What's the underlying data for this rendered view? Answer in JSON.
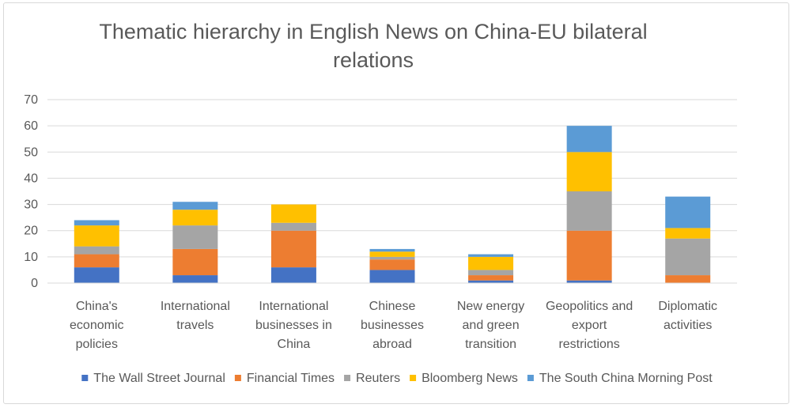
{
  "chart_data": {
    "type": "bar",
    "stacked": true,
    "title": "Thematic hierarchy in English News on China-EU bilateral relations",
    "title_lines": [
      "Thematic hierarchy in English News on China-EU bilateral",
      "relations"
    ],
    "categories": [
      "China's economic policies",
      "International travels",
      "International businesses in China",
      "Chinese businesses abroad",
      "New energy and green transition",
      "Geopolitics and export restrictions",
      "Diplomatic activities"
    ],
    "category_lines": [
      [
        "China's",
        "economic",
        "policies"
      ],
      [
        "International",
        "travels"
      ],
      [
        "International",
        "businesses in",
        "China"
      ],
      [
        "Chinese",
        "businesses",
        "abroad"
      ],
      [
        "New energy",
        "and green",
        "transition"
      ],
      [
        "Geopolitics and",
        "export",
        "restrictions"
      ],
      [
        "Diplomatic",
        "activities"
      ]
    ],
    "series": [
      {
        "name": "The Wall Street Journal",
        "color": "#4472c4",
        "values": [
          6,
          3,
          6,
          5,
          1,
          1,
          0
        ]
      },
      {
        "name": "Financial Times",
        "color": "#ed7d31",
        "values": [
          5,
          10,
          14,
          4,
          2,
          19,
          3
        ]
      },
      {
        "name": "Reuters",
        "color": "#a5a5a5",
        "values": [
          3,
          9,
          3,
          1,
          2,
          15,
          14
        ]
      },
      {
        "name": "Bloomberg News",
        "color": "#ffc000",
        "values": [
          8,
          6,
          7,
          2,
          5,
          15,
          4
        ]
      },
      {
        "name": "The South China Morning Post",
        "color": "#5b9bd5",
        "values": [
          2,
          3,
          0,
          1,
          1,
          10,
          12
        ]
      }
    ],
    "ylim": [
      0,
      70
    ],
    "yticks": [
      0,
      10,
      20,
      30,
      40,
      50,
      60,
      70
    ],
    "grid": true,
    "legend_position": "bottom"
  }
}
